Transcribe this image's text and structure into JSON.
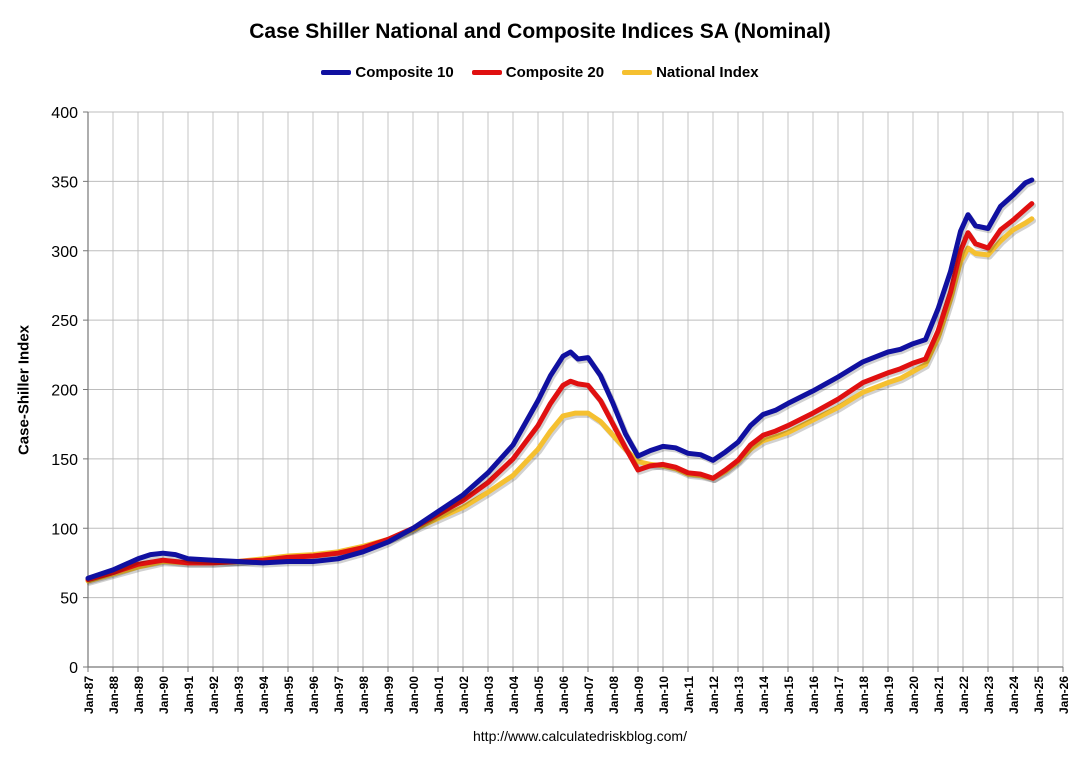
{
  "chart_data": {
    "type": "line",
    "title": "Case Shiller National and Composite Indices SA (Nominal)",
    "ylabel": "Case-Shiller Index",
    "xlabel": "",
    "source": "http://www.calculatedriskblog.com/",
    "ylim": [
      0,
      400
    ],
    "yticks": [
      0,
      50,
      100,
      150,
      200,
      250,
      300,
      350,
      400
    ],
    "xlim": [
      1987,
      2026
    ],
    "xtick_labels": [
      "Jan-87",
      "Jan-88",
      "Jan-89",
      "Jan-90",
      "Jan-91",
      "Jan-92",
      "Jan-93",
      "Jan-94",
      "Jan-95",
      "Jan-96",
      "Jan-97",
      "Jan-98",
      "Jan-99",
      "Jan-00",
      "Jan-01",
      "Jan-02",
      "Jan-03",
      "Jan-04",
      "Jan-05",
      "Jan-06",
      "Jan-07",
      "Jan-08",
      "Jan-09",
      "Jan-10",
      "Jan-11",
      "Jan-12",
      "Jan-13",
      "Jan-14",
      "Jan-15",
      "Jan-16",
      "Jan-17",
      "Jan-18",
      "Jan-19",
      "Jan-20",
      "Jan-21",
      "Jan-22",
      "Jan-23",
      "Jan-24",
      "Jan-25",
      "Jan-26"
    ],
    "grid": true,
    "legend_position": "top-center",
    "series": [
      {
        "name": "Composite 10",
        "color": "#1010a0",
        "points": [
          [
            1987.0,
            64
          ],
          [
            1988.0,
            70
          ],
          [
            1989.0,
            78
          ],
          [
            1989.5,
            81
          ],
          [
            1990.0,
            82
          ],
          [
            1990.5,
            81
          ],
          [
            1991.0,
            78
          ],
          [
            1992.0,
            77
          ],
          [
            1993.0,
            76
          ],
          [
            1994.0,
            75
          ],
          [
            1995.0,
            76
          ],
          [
            1996.0,
            76
          ],
          [
            1997.0,
            78
          ],
          [
            1998.0,
            83
          ],
          [
            1999.0,
            90
          ],
          [
            2000.0,
            100
          ],
          [
            2001.0,
            112
          ],
          [
            2002.0,
            124
          ],
          [
            2003.0,
            140
          ],
          [
            2004.0,
            160
          ],
          [
            2005.0,
            192
          ],
          [
            2005.5,
            210
          ],
          [
            2006.0,
            224
          ],
          [
            2006.3,
            227
          ],
          [
            2006.6,
            222
          ],
          [
            2007.0,
            223
          ],
          [
            2007.5,
            210
          ],
          [
            2008.0,
            190
          ],
          [
            2008.5,
            168
          ],
          [
            2009.0,
            152
          ],
          [
            2009.5,
            156
          ],
          [
            2010.0,
            159
          ],
          [
            2010.5,
            158
          ],
          [
            2011.0,
            154
          ],
          [
            2011.5,
            153
          ],
          [
            2012.0,
            149
          ],
          [
            2012.5,
            155
          ],
          [
            2013.0,
            162
          ],
          [
            2013.5,
            174
          ],
          [
            2014.0,
            182
          ],
          [
            2014.5,
            185
          ],
          [
            2015.0,
            190
          ],
          [
            2016.0,
            199
          ],
          [
            2017.0,
            209
          ],
          [
            2018.0,
            220
          ],
          [
            2019.0,
            227
          ],
          [
            2019.5,
            229
          ],
          [
            2020.0,
            233
          ],
          [
            2020.5,
            236
          ],
          [
            2021.0,
            258
          ],
          [
            2021.5,
            285
          ],
          [
            2021.9,
            314
          ],
          [
            2022.2,
            326
          ],
          [
            2022.5,
            318
          ],
          [
            2023.0,
            316
          ],
          [
            2023.5,
            332
          ],
          [
            2024.0,
            340
          ],
          [
            2024.5,
            349
          ],
          [
            2024.75,
            351
          ]
        ]
      },
      {
        "name": "Composite 20",
        "color": "#e01010",
        "points": [
          [
            1987.0,
            63
          ],
          [
            1988.0,
            68
          ],
          [
            1989.0,
            74
          ],
          [
            1990.0,
            77
          ],
          [
            1991.0,
            75
          ],
          [
            1992.0,
            75
          ],
          [
            1993.0,
            76
          ],
          [
            1994.0,
            77
          ],
          [
            1995.0,
            79
          ],
          [
            1996.0,
            80
          ],
          [
            1997.0,
            82
          ],
          [
            1998.0,
            86
          ],
          [
            1999.0,
            92
          ],
          [
            2000.0,
            100
          ],
          [
            2001.0,
            110
          ],
          [
            2002.0,
            120
          ],
          [
            2003.0,
            133
          ],
          [
            2004.0,
            150
          ],
          [
            2005.0,
            174
          ],
          [
            2005.5,
            190
          ],
          [
            2006.0,
            203
          ],
          [
            2006.3,
            206
          ],
          [
            2006.6,
            204
          ],
          [
            2007.0,
            203
          ],
          [
            2007.5,
            192
          ],
          [
            2008.0,
            175
          ],
          [
            2008.5,
            158
          ],
          [
            2009.0,
            142
          ],
          [
            2009.5,
            145
          ],
          [
            2010.0,
            146
          ],
          [
            2010.5,
            144
          ],
          [
            2011.0,
            140
          ],
          [
            2011.5,
            139
          ],
          [
            2012.0,
            136
          ],
          [
            2012.5,
            142
          ],
          [
            2013.0,
            149
          ],
          [
            2013.5,
            160
          ],
          [
            2014.0,
            167
          ],
          [
            2014.5,
            170
          ],
          [
            2015.0,
            174
          ],
          [
            2016.0,
            183
          ],
          [
            2017.0,
            193
          ],
          [
            2018.0,
            205
          ],
          [
            2019.0,
            212
          ],
          [
            2019.5,
            215
          ],
          [
            2020.0,
            219
          ],
          [
            2020.5,
            222
          ],
          [
            2021.0,
            242
          ],
          [
            2021.5,
            270
          ],
          [
            2021.9,
            300
          ],
          [
            2022.2,
            313
          ],
          [
            2022.5,
            305
          ],
          [
            2023.0,
            302
          ],
          [
            2023.5,
            315
          ],
          [
            2024.0,
            322
          ],
          [
            2024.5,
            330
          ],
          [
            2024.75,
            334
          ]
        ]
      },
      {
        "name": "National Index",
        "color": "#f5c030",
        "points": [
          [
            1987.0,
            62
          ],
          [
            1988.0,
            67
          ],
          [
            1989.0,
            72
          ],
          [
            1990.0,
            76
          ],
          [
            1991.0,
            75
          ],
          [
            1992.0,
            75
          ],
          [
            1993.0,
            76
          ],
          [
            1994.0,
            78
          ],
          [
            1995.0,
            80
          ],
          [
            1996.0,
            81
          ],
          [
            1997.0,
            83
          ],
          [
            1998.0,
            87
          ],
          [
            1999.0,
            92
          ],
          [
            2000.0,
            99
          ],
          [
            2001.0,
            107
          ],
          [
            2002.0,
            115
          ],
          [
            2003.0,
            126
          ],
          [
            2004.0,
            138
          ],
          [
            2005.0,
            157
          ],
          [
            2005.5,
            170
          ],
          [
            2006.0,
            181
          ],
          [
            2006.5,
            183
          ],
          [
            2007.0,
            183
          ],
          [
            2007.5,
            177
          ],
          [
            2008.0,
            167
          ],
          [
            2008.5,
            157
          ],
          [
            2009.0,
            148
          ],
          [
            2009.5,
            146
          ],
          [
            2010.0,
            145
          ],
          [
            2010.5,
            143
          ],
          [
            2011.0,
            139
          ],
          [
            2011.5,
            138
          ],
          [
            2012.0,
            136
          ],
          [
            2012.5,
            141
          ],
          [
            2013.0,
            148
          ],
          [
            2013.5,
            157
          ],
          [
            2014.0,
            163
          ],
          [
            2014.5,
            166
          ],
          [
            2015.0,
            169
          ],
          [
            2016.0,
            178
          ],
          [
            2017.0,
            187
          ],
          [
            2018.0,
            198
          ],
          [
            2019.0,
            205
          ],
          [
            2019.5,
            208
          ],
          [
            2020.0,
            213
          ],
          [
            2020.5,
            218
          ],
          [
            2021.0,
            237
          ],
          [
            2021.5,
            265
          ],
          [
            2021.9,
            292
          ],
          [
            2022.2,
            302
          ],
          [
            2022.5,
            298
          ],
          [
            2023.0,
            297
          ],
          [
            2023.5,
            307
          ],
          [
            2024.0,
            315
          ],
          [
            2024.5,
            320
          ],
          [
            2024.75,
            323
          ]
        ]
      }
    ]
  }
}
